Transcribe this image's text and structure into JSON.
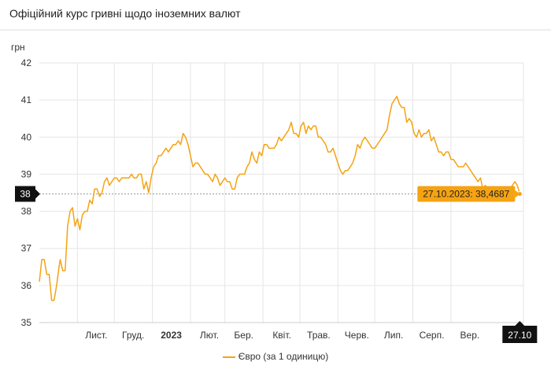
{
  "header": {
    "title": "Офіційний курс гривні щодо іноземних валют"
  },
  "colors": {
    "series": "#f5a312",
    "tooltip_bg": "#f5a312",
    "marker_bg": "#111111",
    "grid": "#e6e6e6"
  },
  "chart_data": {
    "type": "line",
    "title": "",
    "ylabel": "грн",
    "ylim": [
      35,
      42
    ],
    "yticks": [
      35,
      36,
      37,
      38,
      39,
      40,
      41,
      42
    ],
    "x_range": [
      "2022-10-01",
      "2023-10-30"
    ],
    "xticks": [
      {
        "label": "Лист.",
        "date": "2022-11-01",
        "bold": false
      },
      {
        "label": "Груд.",
        "date": "2022-12-01",
        "bold": false
      },
      {
        "label": "2023",
        "date": "2023-01-01",
        "bold": true
      },
      {
        "label": "Лют.",
        "date": "2023-02-01",
        "bold": false
      },
      {
        "label": "Бер.",
        "date": "2023-03-01",
        "bold": false
      },
      {
        "label": "Квіт.",
        "date": "2023-04-01",
        "bold": false
      },
      {
        "label": "Трав.",
        "date": "2023-05-01",
        "bold": false
      },
      {
        "label": "Черв.",
        "date": "2023-06-01",
        "bold": false
      },
      {
        "label": "Лип.",
        "date": "2023-07-01",
        "bold": false
      },
      {
        "label": "Серп.",
        "date": "2023-08-01",
        "bold": false
      },
      {
        "label": "Вер.",
        "date": "2023-09-01",
        "bold": false
      }
    ],
    "grid": true,
    "legend": "bottom-center",
    "crosshair": {
      "x_label": "27.10",
      "x_date": "2023-10-27",
      "y_label": "38",
      "y_value": 38.4687
    },
    "tooltip": {
      "text": "27.10.2023: 38,4687"
    },
    "series": [
      {
        "name": "Євро (за 1 одиницю)",
        "points": [
          [
            "2022-10-01",
            36.1
          ],
          [
            "2022-10-03",
            36.7
          ],
          [
            "2022-10-05",
            36.7
          ],
          [
            "2022-10-07",
            36.3
          ],
          [
            "2022-10-09",
            36.3
          ],
          [
            "2022-10-11",
            35.6
          ],
          [
            "2022-10-13",
            35.6
          ],
          [
            "2022-10-15",
            36.0
          ],
          [
            "2022-10-17",
            36.5
          ],
          [
            "2022-10-18",
            36.7
          ],
          [
            "2022-10-20",
            36.4
          ],
          [
            "2022-10-22",
            36.4
          ],
          [
            "2022-10-24",
            37.6
          ],
          [
            "2022-10-26",
            38.0
          ],
          [
            "2022-10-28",
            38.1
          ],
          [
            "2022-10-30",
            37.6
          ],
          [
            "2022-11-01",
            37.8
          ],
          [
            "2022-11-03",
            37.5
          ],
          [
            "2022-11-05",
            37.9
          ],
          [
            "2022-11-07",
            38.0
          ],
          [
            "2022-11-09",
            38.0
          ],
          [
            "2022-11-11",
            38.3
          ],
          [
            "2022-11-13",
            38.2
          ],
          [
            "2022-11-15",
            38.6
          ],
          [
            "2022-11-17",
            38.6
          ],
          [
            "2022-11-19",
            38.4
          ],
          [
            "2022-11-21",
            38.5
          ],
          [
            "2022-11-23",
            38.8
          ],
          [
            "2022-11-25",
            38.9
          ],
          [
            "2022-11-27",
            38.7
          ],
          [
            "2022-11-29",
            38.8
          ],
          [
            "2022-12-01",
            38.9
          ],
          [
            "2022-12-03",
            38.9
          ],
          [
            "2022-12-05",
            38.8
          ],
          [
            "2022-12-07",
            38.9
          ],
          [
            "2022-12-09",
            38.9
          ],
          [
            "2022-12-11",
            38.9
          ],
          [
            "2022-12-13",
            38.9
          ],
          [
            "2022-12-15",
            39.0
          ],
          [
            "2022-12-17",
            38.9
          ],
          [
            "2022-12-19",
            38.9
          ],
          [
            "2022-12-21",
            39.0
          ],
          [
            "2022-12-23",
            39.0
          ],
          [
            "2022-12-25",
            38.6
          ],
          [
            "2022-12-27",
            38.8
          ],
          [
            "2022-12-29",
            38.5
          ],
          [
            "2022-12-31",
            38.9
          ],
          [
            "2023-01-02",
            39.2
          ],
          [
            "2023-01-04",
            39.3
          ],
          [
            "2023-01-06",
            39.5
          ],
          [
            "2023-01-08",
            39.5
          ],
          [
            "2023-01-10",
            39.6
          ],
          [
            "2023-01-12",
            39.7
          ],
          [
            "2023-01-14",
            39.6
          ],
          [
            "2023-01-16",
            39.7
          ],
          [
            "2023-01-18",
            39.8
          ],
          [
            "2023-01-20",
            39.8
          ],
          [
            "2023-01-22",
            39.9
          ],
          [
            "2023-01-24",
            39.8
          ],
          [
            "2023-01-26",
            40.1
          ],
          [
            "2023-01-28",
            40.0
          ],
          [
            "2023-01-30",
            39.8
          ],
          [
            "2023-02-01",
            39.5
          ],
          [
            "2023-02-03",
            39.2
          ],
          [
            "2023-02-05",
            39.3
          ],
          [
            "2023-02-07",
            39.3
          ],
          [
            "2023-02-09",
            39.2
          ],
          [
            "2023-02-11",
            39.1
          ],
          [
            "2023-02-13",
            39.0
          ],
          [
            "2023-02-15",
            39.0
          ],
          [
            "2023-02-17",
            38.9
          ],
          [
            "2023-02-19",
            38.8
          ],
          [
            "2023-02-21",
            39.0
          ],
          [
            "2023-02-23",
            38.9
          ],
          [
            "2023-02-25",
            38.7
          ],
          [
            "2023-02-27",
            38.8
          ],
          [
            "2023-03-01",
            38.9
          ],
          [
            "2023-03-03",
            38.8
          ],
          [
            "2023-03-05",
            38.8
          ],
          [
            "2023-03-07",
            38.6
          ],
          [
            "2023-03-09",
            38.6
          ],
          [
            "2023-03-11",
            38.9
          ],
          [
            "2023-03-13",
            39.0
          ],
          [
            "2023-03-15",
            39.0
          ],
          [
            "2023-03-17",
            39.0
          ],
          [
            "2023-03-19",
            39.2
          ],
          [
            "2023-03-21",
            39.3
          ],
          [
            "2023-03-23",
            39.6
          ],
          [
            "2023-03-25",
            39.4
          ],
          [
            "2023-03-27",
            39.3
          ],
          [
            "2023-03-29",
            39.6
          ],
          [
            "2023-03-31",
            39.5
          ],
          [
            "2023-04-02",
            39.8
          ],
          [
            "2023-04-04",
            39.8
          ],
          [
            "2023-04-06",
            39.7
          ],
          [
            "2023-04-08",
            39.7
          ],
          [
            "2023-04-10",
            39.7
          ],
          [
            "2023-04-12",
            39.8
          ],
          [
            "2023-04-14",
            40.0
          ],
          [
            "2023-04-16",
            39.9
          ],
          [
            "2023-04-18",
            40.0
          ],
          [
            "2023-04-20",
            40.1
          ],
          [
            "2023-04-22",
            40.2
          ],
          [
            "2023-04-24",
            40.4
          ],
          [
            "2023-04-26",
            40.1
          ],
          [
            "2023-04-28",
            40.1
          ],
          [
            "2023-04-30",
            40.0
          ],
          [
            "2023-05-02",
            40.3
          ],
          [
            "2023-05-04",
            40.4
          ],
          [
            "2023-05-06",
            40.1
          ],
          [
            "2023-05-08",
            40.3
          ],
          [
            "2023-05-10",
            40.2
          ],
          [
            "2023-05-12",
            40.3
          ],
          [
            "2023-05-14",
            40.3
          ],
          [
            "2023-05-16",
            40.0
          ],
          [
            "2023-05-18",
            40.0
          ],
          [
            "2023-05-20",
            39.9
          ],
          [
            "2023-05-22",
            39.8
          ],
          [
            "2023-05-24",
            39.6
          ],
          [
            "2023-05-26",
            39.6
          ],
          [
            "2023-05-28",
            39.7
          ],
          [
            "2023-05-30",
            39.5
          ],
          [
            "2023-06-01",
            39.3
          ],
          [
            "2023-06-03",
            39.1
          ],
          [
            "2023-06-05",
            39.0
          ],
          [
            "2023-06-07",
            39.1
          ],
          [
            "2023-06-09",
            39.1
          ],
          [
            "2023-06-11",
            39.2
          ],
          [
            "2023-06-13",
            39.3
          ],
          [
            "2023-06-15",
            39.5
          ],
          [
            "2023-06-17",
            39.8
          ],
          [
            "2023-06-19",
            39.7
          ],
          [
            "2023-06-21",
            39.9
          ],
          [
            "2023-06-23",
            40.0
          ],
          [
            "2023-06-25",
            39.9
          ],
          [
            "2023-06-27",
            39.8
          ],
          [
            "2023-06-29",
            39.7
          ],
          [
            "2023-07-01",
            39.7
          ],
          [
            "2023-07-03",
            39.8
          ],
          [
            "2023-07-05",
            39.9
          ],
          [
            "2023-07-07",
            40.0
          ],
          [
            "2023-07-09",
            40.1
          ],
          [
            "2023-07-11",
            40.2
          ],
          [
            "2023-07-13",
            40.6
          ],
          [
            "2023-07-15",
            40.9
          ],
          [
            "2023-07-17",
            41.0
          ],
          [
            "2023-07-19",
            41.1
          ],
          [
            "2023-07-21",
            40.9
          ],
          [
            "2023-07-23",
            40.8
          ],
          [
            "2023-07-25",
            40.8
          ],
          [
            "2023-07-27",
            40.4
          ],
          [
            "2023-07-29",
            40.5
          ],
          [
            "2023-07-31",
            40.4
          ],
          [
            "2023-08-02",
            40.1
          ],
          [
            "2023-08-04",
            40.0
          ],
          [
            "2023-08-06",
            40.2
          ],
          [
            "2023-08-08",
            40.0
          ],
          [
            "2023-08-10",
            40.1
          ],
          [
            "2023-08-12",
            40.1
          ],
          [
            "2023-08-14",
            40.2
          ],
          [
            "2023-08-16",
            39.9
          ],
          [
            "2023-08-18",
            40.0
          ],
          [
            "2023-08-20",
            39.8
          ],
          [
            "2023-08-22",
            39.6
          ],
          [
            "2023-08-24",
            39.6
          ],
          [
            "2023-08-26",
            39.5
          ],
          [
            "2023-08-28",
            39.6
          ],
          [
            "2023-08-30",
            39.6
          ],
          [
            "2023-09-01",
            39.4
          ],
          [
            "2023-09-03",
            39.4
          ],
          [
            "2023-09-05",
            39.3
          ],
          [
            "2023-09-07",
            39.2
          ],
          [
            "2023-09-09",
            39.2
          ],
          [
            "2023-09-11",
            39.2
          ],
          [
            "2023-09-13",
            39.3
          ],
          [
            "2023-09-15",
            39.2
          ],
          [
            "2023-09-17",
            39.1
          ],
          [
            "2023-09-19",
            39.0
          ],
          [
            "2023-09-21",
            38.9
          ],
          [
            "2023-09-23",
            38.8
          ],
          [
            "2023-09-25",
            38.9
          ],
          [
            "2023-09-27",
            38.6
          ],
          [
            "2023-09-29",
            38.7
          ],
          [
            "2023-10-01",
            38.6
          ],
          [
            "2023-10-03",
            38.4
          ],
          [
            "2023-10-05",
            38.5
          ],
          [
            "2023-10-07",
            38.6
          ],
          [
            "2023-10-09",
            38.5
          ],
          [
            "2023-10-11",
            38.6
          ],
          [
            "2023-10-13",
            38.6
          ],
          [
            "2023-10-15",
            38.5
          ],
          [
            "2023-10-17",
            38.6
          ],
          [
            "2023-10-19",
            38.6
          ],
          [
            "2023-10-21",
            38.7
          ],
          [
            "2023-10-23",
            38.8
          ],
          [
            "2023-10-25",
            38.7
          ],
          [
            "2023-10-27",
            38.4687
          ]
        ]
      }
    ]
  }
}
